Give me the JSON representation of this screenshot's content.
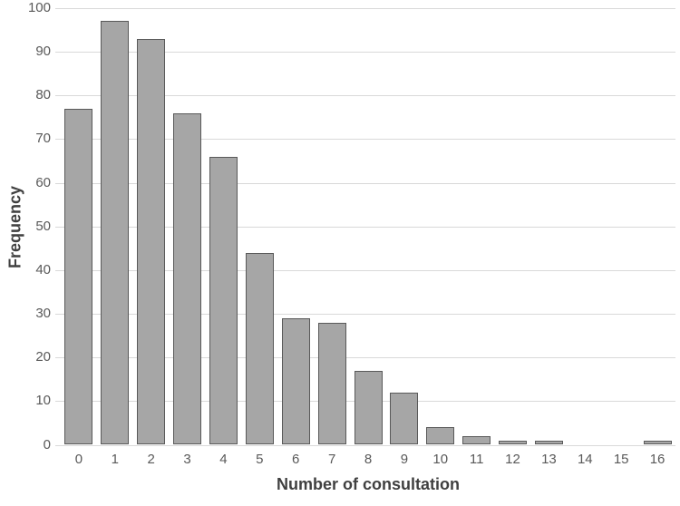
{
  "chart_data": {
    "type": "bar",
    "title": "",
    "xlabel": "Number of consultation",
    "ylabel": "Frequency",
    "categories": [
      "0",
      "1",
      "2",
      "3",
      "4",
      "5",
      "6",
      "7",
      "8",
      "9",
      "10",
      "11",
      "12",
      "13",
      "14",
      "15",
      "16"
    ],
    "values": [
      77,
      97,
      93,
      76,
      66,
      44,
      29,
      28,
      17,
      12,
      4,
      2,
      1,
      1,
      0,
      0,
      1
    ],
    "ylim": [
      0,
      100
    ],
    "yticks": [
      0,
      10,
      20,
      30,
      40,
      50,
      60,
      70,
      80,
      90,
      100
    ],
    "grid": "horizontal",
    "legend": "none",
    "colors": {
      "bar_fill": "#a6a6a6",
      "bar_border": "#595959",
      "gridline": "#d9d9d9",
      "tick_label": "#595959",
      "axis_title": "#404040",
      "background": "#ffffff"
    }
  }
}
